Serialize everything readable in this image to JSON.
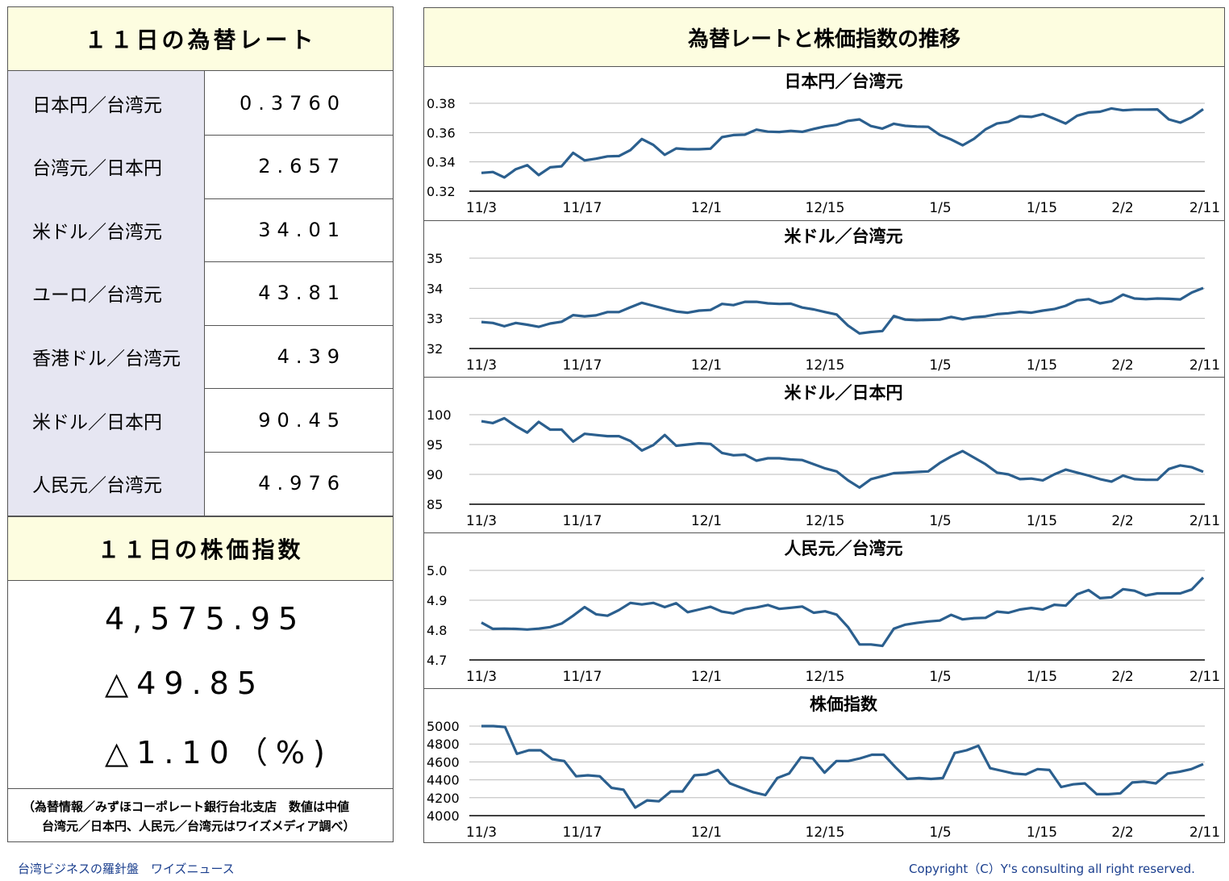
{
  "left": {
    "rates_title": "１１日の為替レート",
    "rates": [
      {
        "label": "日本円／台湾元",
        "value": "0.3760"
      },
      {
        "label": "台湾元／日本円",
        "value": "2.657"
      },
      {
        "label": "米ドル／台湾元",
        "value": "34.01"
      },
      {
        "label": "ユーロ／台湾元",
        "value": "43.81"
      },
      {
        "label": "香港ドル／台湾元",
        "value": "4.39"
      },
      {
        "label": "米ドル／日本円",
        "value": "90.45"
      },
      {
        "label": "人民元／台湾元",
        "value": "4.976"
      }
    ],
    "stock_title": "１１日の株価指数",
    "stock_value": "4,575.95",
    "stock_change": "△49.85",
    "stock_pct": "△1.10（%)",
    "note_line1": "（為替情報／みずほコーポレート銀行台北支店　数値は中値",
    "note_line2": "台湾元／日本円、人民元／台湾元はワイズメディア調べ）"
  },
  "right": {
    "title": "為替レートと株価指数の推移"
  },
  "footer": {
    "left": "台湾ビジネスの羅針盤　ワイズニュース",
    "right": "Copyright（C）Y's consulting all right reserved."
  },
  "chart_data": [
    {
      "type": "line",
      "title": "日本円／台湾元",
      "ylim": [
        0.32,
        0.38
      ],
      "yticks": [
        "0.38",
        "0.36",
        "0.34",
        "0.32"
      ],
      "xticks": [
        "11/3",
        "11/17",
        "12/1",
        "12/15",
        "1/5",
        "1/15",
        "2/2",
        "2/11"
      ],
      "color": "#2b5f8e",
      "values": [
        0.3325,
        0.3331,
        0.3294,
        0.335,
        0.3378,
        0.331,
        0.3363,
        0.337,
        0.3462,
        0.341,
        0.3422,
        0.3438,
        0.344,
        0.348,
        0.3556,
        0.3516,
        0.3448,
        0.3492,
        0.3486,
        0.3486,
        0.349,
        0.3569,
        0.3583,
        0.3586,
        0.362,
        0.3606,
        0.3604,
        0.3612,
        0.3605,
        0.3625,
        0.3642,
        0.3653,
        0.368,
        0.369,
        0.3645,
        0.3627,
        0.366,
        0.3646,
        0.3641,
        0.3639,
        0.3584,
        0.3553,
        0.3513,
        0.3558,
        0.3622,
        0.3662,
        0.3674,
        0.3712,
        0.3707,
        0.3726,
        0.3695,
        0.3662,
        0.3715,
        0.3737,
        0.3742,
        0.3765,
        0.3752,
        0.3757,
        0.3757,
        0.3758,
        0.369,
        0.3668,
        0.3705,
        0.376
      ]
    },
    {
      "type": "line",
      "title": "米ドル／台湾元",
      "ylim": [
        32,
        35
      ],
      "yticks": [
        "35",
        "34",
        "33",
        "32"
      ],
      "xticks": [
        "11/3",
        "11/17",
        "12/1",
        "12/15",
        "1/5",
        "1/15",
        "2/2",
        "2/11"
      ],
      "color": "#2b5f8e",
      "values": [
        32.88,
        32.85,
        32.74,
        32.85,
        32.79,
        32.72,
        32.83,
        32.89,
        33.11,
        33.07,
        33.1,
        33.21,
        33.21,
        33.37,
        33.52,
        33.42,
        33.32,
        33.23,
        33.19,
        33.26,
        33.28,
        33.48,
        33.44,
        33.55,
        33.55,
        33.5,
        33.48,
        33.49,
        33.36,
        33.3,
        33.21,
        33.13,
        32.76,
        32.5,
        32.55,
        32.58,
        33.08,
        32.96,
        32.94,
        32.95,
        32.96,
        33.05,
        32.97,
        33.04,
        33.07,
        33.14,
        33.17,
        33.22,
        33.19,
        33.26,
        33.31,
        33.42,
        33.6,
        33.64,
        33.5,
        33.57,
        33.79,
        33.66,
        33.64,
        33.66,
        33.65,
        33.63,
        33.86,
        34.01
      ]
    },
    {
      "type": "line",
      "title": "米ドル／日本円",
      "ylim": [
        85,
        100
      ],
      "yticks": [
        "100",
        "95",
        "90",
        "85"
      ],
      "xticks": [
        "11/3",
        "11/17",
        "12/1",
        "12/15",
        "1/5",
        "1/15",
        "2/2",
        "2/11"
      ],
      "color": "#2b5f8e",
      "values": [
        98.9,
        98.6,
        99.4,
        98.1,
        97.0,
        98.8,
        97.5,
        97.5,
        95.5,
        96.8,
        96.6,
        96.4,
        96.4,
        95.6,
        94.0,
        94.9,
        96.6,
        94.8,
        95.0,
        95.2,
        95.1,
        93.6,
        93.2,
        93.3,
        92.3,
        92.7,
        92.7,
        92.5,
        92.4,
        91.7,
        91.0,
        90.5,
        89.0,
        87.8,
        89.2,
        89.7,
        90.2,
        90.3,
        90.4,
        90.5,
        91.9,
        93.0,
        93.9,
        92.8,
        91.7,
        90.3,
        90.0,
        89.2,
        89.3,
        89.0,
        90.0,
        90.8,
        90.3,
        89.8,
        89.2,
        88.8,
        89.8,
        89.2,
        89.1,
        89.1,
        90.9,
        91.5,
        91.2,
        90.45
      ]
    },
    {
      "type": "line",
      "title": "人民元／台湾元",
      "ylim": [
        4.7,
        5.0
      ],
      "yticks": [
        "5.0",
        "4.9",
        "4.8",
        "4.7"
      ],
      "xticks": [
        "11/3",
        "11/17",
        "12/1",
        "12/15",
        "1/5",
        "1/15",
        "2/2",
        "2/11"
      ],
      "color": "#2b5f8e",
      "values": [
        4.825,
        4.804,
        4.805,
        4.804,
        4.802,
        4.805,
        4.81,
        4.822,
        4.848,
        4.877,
        4.853,
        4.848,
        4.867,
        4.891,
        4.886,
        4.891,
        4.877,
        4.89,
        4.86,
        4.869,
        4.878,
        4.862,
        4.856,
        4.87,
        4.876,
        4.884,
        4.871,
        4.875,
        4.879,
        4.858,
        4.863,
        4.852,
        4.81,
        4.752,
        4.752,
        4.747,
        4.805,
        4.818,
        4.824,
        4.829,
        4.832,
        4.851,
        4.836,
        4.84,
        4.841,
        4.862,
        4.858,
        4.869,
        4.874,
        4.869,
        4.885,
        4.882,
        4.92,
        4.934,
        4.907,
        4.91,
        4.937,
        4.932,
        4.916,
        4.923,
        4.923,
        4.923,
        4.936,
        4.976
      ]
    },
    {
      "type": "line",
      "title": "株価指数",
      "ylim": [
        4000,
        5000
      ],
      "yticks": [
        "5000",
        "4800",
        "4600",
        "4400",
        "4200",
        "4000"
      ],
      "xticks": [
        "11/3",
        "11/17",
        "12/1",
        "12/15",
        "1/5",
        "1/15",
        "2/2",
        "2/11"
      ],
      "color": "#2b5f8e",
      "values": [
        5000,
        5000,
        4990,
        4690,
        4730,
        4730,
        4630,
        4610,
        4440,
        4450,
        4440,
        4310,
        4290,
        4090,
        4170,
        4160,
        4270,
        4270,
        4450,
        4460,
        4510,
        4360,
        4310,
        4260,
        4230,
        4420,
        4470,
        4650,
        4640,
        4480,
        4610,
        4610,
        4640,
        4680,
        4680,
        4540,
        4410,
        4420,
        4410,
        4420,
        4700,
        4730,
        4780,
        4530,
        4500,
        4470,
        4460,
        4520,
        4510,
        4320,
        4350,
        4360,
        4240,
        4240,
        4250,
        4370,
        4380,
        4360,
        4470,
        4490,
        4520,
        4575.95
      ]
    }
  ]
}
